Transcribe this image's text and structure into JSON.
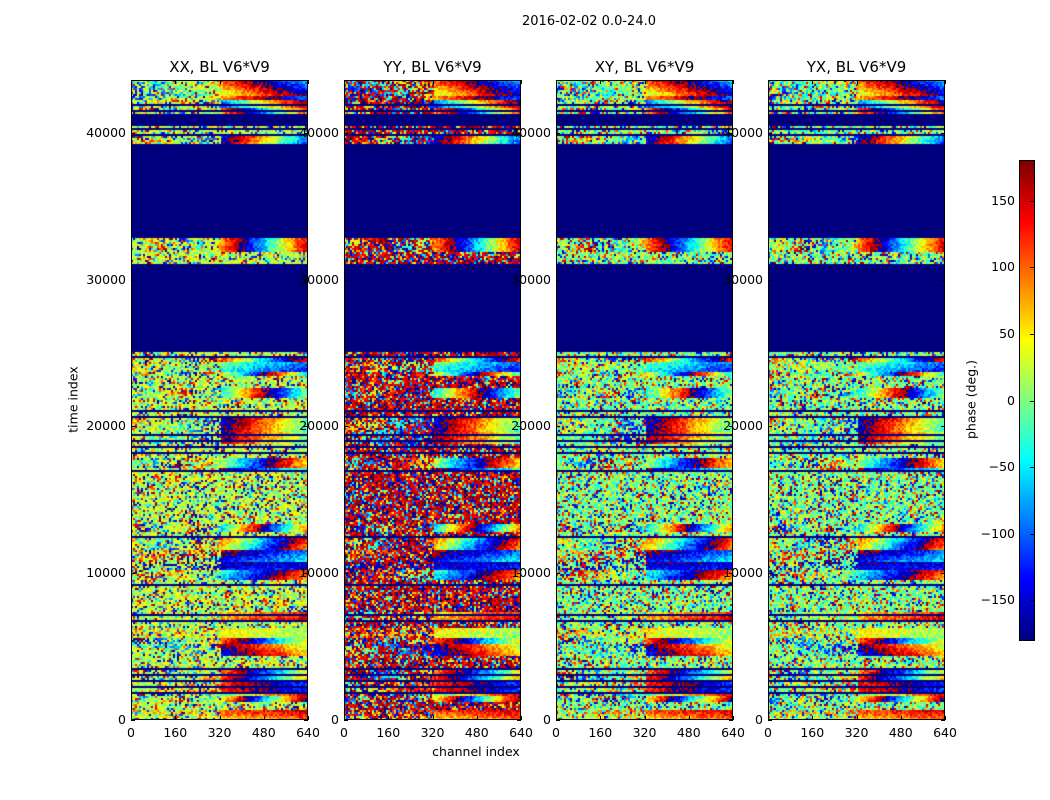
{
  "figure_title": "2016-02-02 0.0-24.0",
  "chart_data": {
    "type": "heatmap",
    "xlabel": "channel index",
    "ylabel": "time index",
    "xlim": [
      0,
      640
    ],
    "ylim": [
      0,
      43600
    ],
    "xticks": [
      "0",
      "160",
      "320",
      "480",
      "640"
    ],
    "yticks": [
      "0",
      "10000",
      "20000",
      "30000",
      "40000"
    ],
    "panels": [
      {
        "title": "XX, BL V6*V9",
        "dominant_phase": 20
      },
      {
        "title": "YY, BL V6*V9",
        "dominant_phase": 160
      },
      {
        "title": "XY, BL V6*V9",
        "dominant_phase": 0
      },
      {
        "title": "YX, BL V6*V9",
        "dominant_phase": 0
      }
    ],
    "masked_time_ranges": [
      [
        25100,
        31200
      ],
      [
        33000,
        39300
      ],
      [
        40550,
        41400
      ]
    ],
    "colorbar": {
      "label": "phase (deg.)",
      "range": [
        -180,
        180
      ],
      "colormap": "jet",
      "ticks": [
        "150",
        "100",
        "50",
        "0",
        "−50",
        "−100",
        "−150"
      ],
      "tick_values": [
        150,
        100,
        50,
        0,
        -50,
        -100,
        -150
      ]
    }
  }
}
